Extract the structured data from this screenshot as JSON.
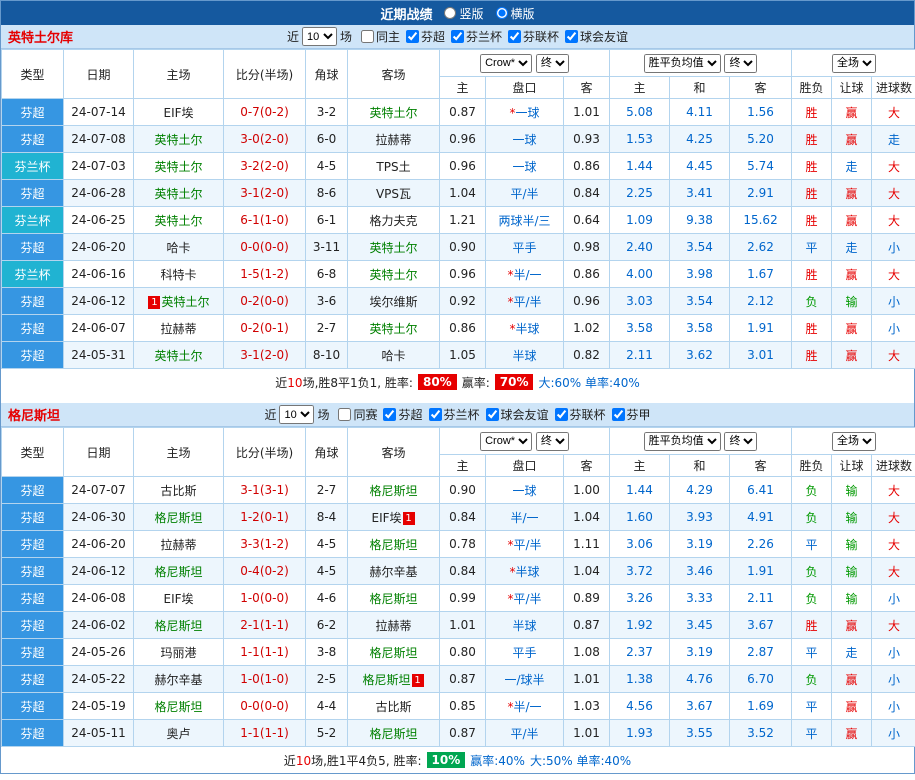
{
  "colors": {
    "topbar_bg": "#15599F",
    "section_head_bg": "#CFE5F8",
    "league_super_bg": "#3696E2",
    "league_cup_bg": "#20B3D2",
    "win_red": "#E60000",
    "lose_green": "#009900",
    "neutral_blue": "#0066CC",
    "team_green": "#008000",
    "score_red": "#D00000",
    "rate_badge_red": "#E60000",
    "rate_badge_green": "#00A651"
  },
  "topbar": {
    "title": "近期战绩",
    "layout_options": [
      {
        "label": "竖版",
        "selected": false
      },
      {
        "label": "横版",
        "selected": true
      }
    ]
  },
  "sections": [
    {
      "team": "英特土尔库",
      "filter": {
        "near": "近",
        "count": "10",
        "games": "场",
        "checkboxes": [
          {
            "label": "同主",
            "checked": false
          },
          {
            "label": "芬超",
            "checked": true
          },
          {
            "label": "芬兰杯",
            "checked": true
          },
          {
            "label": "芬联杯",
            "checked": true
          },
          {
            "label": "球会友谊",
            "checked": true
          }
        ]
      },
      "header": {
        "type": "类型",
        "date": "日期",
        "home": "主场",
        "score": "比分(半场)",
        "corner": "角球",
        "away": "客场",
        "odds_company": "Crow*",
        "odds_time": "终",
        "avg_label": "胜平负均值",
        "avg_time": "终",
        "scope": "全场",
        "sub": [
          "主",
          "盘口",
          "客",
          "主",
          "和",
          "客",
          "胜负",
          "让球",
          "进球数"
        ]
      },
      "rows": [
        {
          "type": "芬超",
          "cup": false,
          "date": "24-07-14",
          "home": "EIF埃",
          "hg": false,
          "hbad": "",
          "score": "0-7(0-2)",
          "corner": "3-2",
          "away": "英特土尔",
          "ag": true,
          "abad": "",
          "o1": "0.87",
          "star": true,
          "hc": "一球",
          "o2": "1.01",
          "a1": "5.08",
          "a2": "4.11",
          "a3": "1.56",
          "r1": "胜",
          "c1": "w",
          "r2": "赢",
          "c2": "w",
          "r3": "大",
          "c3": "w"
        },
        {
          "type": "芬超",
          "cup": false,
          "date": "24-07-08",
          "home": "英特土尔",
          "hg": true,
          "hbad": "",
          "score": "3-0(2-0)",
          "corner": "6-0",
          "away": "拉赫蒂",
          "ag": false,
          "abad": "",
          "o1": "0.96",
          "star": false,
          "hc": "一球",
          "o2": "0.93",
          "a1": "1.53",
          "a2": "4.25",
          "a3": "5.20",
          "r1": "胜",
          "c1": "w",
          "r2": "赢",
          "c2": "w",
          "r3": "走",
          "c3": "d"
        },
        {
          "type": "芬兰杯",
          "cup": true,
          "date": "24-07-03",
          "home": "英特土尔",
          "hg": true,
          "hbad": "",
          "score": "3-2(2-0)",
          "corner": "4-5",
          "away": "TPS土",
          "ag": false,
          "abad": "",
          "o1": "0.96",
          "star": false,
          "hc": "一球",
          "o2": "0.86",
          "a1": "1.44",
          "a2": "4.45",
          "a3": "5.74",
          "r1": "胜",
          "c1": "w",
          "r2": "走",
          "c2": "d",
          "r3": "大",
          "c3": "w"
        },
        {
          "type": "芬超",
          "cup": false,
          "date": "24-06-28",
          "home": "英特土尔",
          "hg": true,
          "hbad": "",
          "score": "3-1(2-0)",
          "corner": "8-6",
          "away": "VPS瓦",
          "ag": false,
          "abad": "",
          "o1": "1.04",
          "star": false,
          "hc": "平/半",
          "o2": "0.84",
          "a1": "2.25",
          "a2": "3.41",
          "a3": "2.91",
          "r1": "胜",
          "c1": "w",
          "r2": "赢",
          "c2": "w",
          "r3": "大",
          "c3": "w"
        },
        {
          "type": "芬兰杯",
          "cup": true,
          "date": "24-06-25",
          "home": "英特土尔",
          "hg": true,
          "hbad": "",
          "score": "6-1(1-0)",
          "corner": "6-1",
          "away": "格力夫克",
          "ag": false,
          "abad": "",
          "o1": "1.21",
          "star": false,
          "hc": "两球半/三",
          "o2": "0.64",
          "a1": "1.09",
          "a2": "9.38",
          "a3": "15.62",
          "r1": "胜",
          "c1": "w",
          "r2": "赢",
          "c2": "w",
          "r3": "大",
          "c3": "w"
        },
        {
          "type": "芬超",
          "cup": false,
          "date": "24-06-20",
          "home": "哈卡",
          "hg": false,
          "hbad": "",
          "score": "0-0(0-0)",
          "corner": "3-11",
          "away": "英特土尔",
          "ag": true,
          "abad": "",
          "o1": "0.90",
          "star": false,
          "hc": "平手",
          "o2": "0.98",
          "a1": "2.40",
          "a2": "3.54",
          "a3": "2.62",
          "r1": "平",
          "c1": "d",
          "r2": "走",
          "c2": "d",
          "r3": "小",
          "c3": "d"
        },
        {
          "type": "芬兰杯",
          "cup": true,
          "date": "24-06-16",
          "home": "科特卡",
          "hg": false,
          "hbad": "",
          "score": "1-5(1-2)",
          "corner": "6-8",
          "away": "英特土尔",
          "ag": true,
          "abad": "",
          "o1": "0.96",
          "star": true,
          "hc": "半/一",
          "o2": "0.86",
          "a1": "4.00",
          "a2": "3.98",
          "a3": "1.67",
          "r1": "胜",
          "c1": "w",
          "r2": "赢",
          "c2": "w",
          "r3": "大",
          "c3": "w"
        },
        {
          "type": "芬超",
          "cup": false,
          "date": "24-06-12",
          "home": "英特土尔",
          "hg": true,
          "hbad": "1",
          "score": "0-2(0-0)",
          "corner": "3-6",
          "away": "埃尔维斯",
          "ag": false,
          "abad": "",
          "o1": "0.92",
          "star": true,
          "hc": "平/半",
          "o2": "0.96",
          "a1": "3.03",
          "a2": "3.54",
          "a3": "2.12",
          "r1": "负",
          "c1": "l",
          "r2": "输",
          "c2": "l",
          "r3": "小",
          "c3": "d"
        },
        {
          "type": "芬超",
          "cup": false,
          "date": "24-06-07",
          "home": "拉赫蒂",
          "hg": false,
          "hbad": "",
          "score": "0-2(0-1)",
          "corner": "2-7",
          "away": "英特土尔",
          "ag": true,
          "abad": "",
          "o1": "0.86",
          "star": true,
          "hc": "半球",
          "o2": "1.02",
          "a1": "3.58",
          "a2": "3.58",
          "a3": "1.91",
          "r1": "胜",
          "c1": "w",
          "r2": "赢",
          "c2": "w",
          "r3": "小",
          "c3": "d"
        },
        {
          "type": "芬超",
          "cup": false,
          "date": "24-05-31",
          "home": "英特土尔",
          "hg": true,
          "hbad": "",
          "score": "3-1(2-0)",
          "corner": "8-10",
          "away": "哈卡",
          "ag": false,
          "abad": "",
          "o1": "1.05",
          "star": false,
          "hc": "半球",
          "o2": "0.82",
          "a1": "2.11",
          "a2": "3.62",
          "a3": "3.01",
          "r1": "胜",
          "c1": "w",
          "r2": "赢",
          "c2": "w",
          "r3": "大",
          "c3": "w"
        }
      ],
      "summary": {
        "prefix": "近",
        "count": "10",
        "record": "场,胜8平1负1, 胜率:",
        "win_rate": "80%",
        "odds_label": "赢率:",
        "odds_rate": "70%",
        "extra": "大:60% 单率:40%"
      }
    },
    {
      "team": "格尼斯坦",
      "filter": {
        "near": "近",
        "count": "10",
        "games": "场",
        "checkboxes": [
          {
            "label": "同赛",
            "checked": false
          },
          {
            "label": "芬超",
            "checked": true
          },
          {
            "label": "芬兰杯",
            "checked": true
          },
          {
            "label": "球会友谊",
            "checked": true
          },
          {
            "label": "芬联杯",
            "checked": true
          },
          {
            "label": "芬甲",
            "checked": true
          }
        ]
      },
      "header": {
        "type": "类型",
        "date": "日期",
        "home": "主场",
        "score": "比分(半场)",
        "corner": "角球",
        "away": "客场",
        "odds_company": "Crow*",
        "odds_time": "终",
        "avg_label": "胜平负均值",
        "avg_time": "终",
        "scope": "全场",
        "sub": [
          "主",
          "盘口",
          "客",
          "主",
          "和",
          "客",
          "胜负",
          "让球",
          "进球数"
        ]
      },
      "rows": [
        {
          "type": "芬超",
          "cup": false,
          "date": "24-07-07",
          "home": "古比斯",
          "hg": false,
          "hbad": "",
          "score": "3-1(3-1)",
          "corner": "2-7",
          "away": "格尼斯坦",
          "ag": true,
          "abad": "",
          "o1": "0.90",
          "star": false,
          "hc": "一球",
          "o2": "1.00",
          "a1": "1.44",
          "a2": "4.29",
          "a3": "6.41",
          "r1": "负",
          "c1": "l",
          "r2": "输",
          "c2": "l",
          "r3": "大",
          "c3": "w"
        },
        {
          "type": "芬超",
          "cup": false,
          "date": "24-06-30",
          "home": "格尼斯坦",
          "hg": true,
          "hbad": "",
          "score": "1-2(0-1)",
          "corner": "8-4",
          "away": "EIF埃",
          "ag": false,
          "abad": "1",
          "o1": "0.84",
          "star": false,
          "hc": "半/一",
          "o2": "1.04",
          "a1": "1.60",
          "a2": "3.93",
          "a3": "4.91",
          "r1": "负",
          "c1": "l",
          "r2": "输",
          "c2": "l",
          "r3": "大",
          "c3": "w"
        },
        {
          "type": "芬超",
          "cup": false,
          "date": "24-06-20",
          "home": "拉赫蒂",
          "hg": false,
          "hbad": "",
          "score": "3-3(1-2)",
          "corner": "4-5",
          "away": "格尼斯坦",
          "ag": true,
          "abad": "",
          "o1": "0.78",
          "star": true,
          "hc": "平/半",
          "o2": "1.11",
          "a1": "3.06",
          "a2": "3.19",
          "a3": "2.26",
          "r1": "平",
          "c1": "d",
          "r2": "输",
          "c2": "l",
          "r3": "大",
          "c3": "w"
        },
        {
          "type": "芬超",
          "cup": false,
          "date": "24-06-12",
          "home": "格尼斯坦",
          "hg": true,
          "hbad": "",
          "score": "0-4(0-2)",
          "corner": "4-5",
          "away": "赫尔辛基",
          "ag": false,
          "abad": "",
          "o1": "0.84",
          "star": true,
          "hc": "半球",
          "o2": "1.04",
          "a1": "3.72",
          "a2": "3.46",
          "a3": "1.91",
          "r1": "负",
          "c1": "l",
          "r2": "输",
          "c2": "l",
          "r3": "大",
          "c3": "w"
        },
        {
          "type": "芬超",
          "cup": false,
          "date": "24-06-08",
          "home": "EIF埃",
          "hg": false,
          "hbad": "",
          "score": "1-0(0-0)",
          "corner": "4-6",
          "away": "格尼斯坦",
          "ag": true,
          "abad": "",
          "o1": "0.99",
          "star": true,
          "hc": "平/半",
          "o2": "0.89",
          "a1": "3.26",
          "a2": "3.33",
          "a3": "2.11",
          "r1": "负",
          "c1": "l",
          "r2": "输",
          "c2": "l",
          "r3": "小",
          "c3": "d"
        },
        {
          "type": "芬超",
          "cup": false,
          "date": "24-06-02",
          "home": "格尼斯坦",
          "hg": true,
          "hbad": "",
          "score": "2-1(1-1)",
          "corner": "6-2",
          "away": "拉赫蒂",
          "ag": false,
          "abad": "",
          "o1": "1.01",
          "star": false,
          "hc": "半球",
          "o2": "0.87",
          "a1": "1.92",
          "a2": "3.45",
          "a3": "3.67",
          "r1": "胜",
          "c1": "w",
          "r2": "赢",
          "c2": "w",
          "r3": "大",
          "c3": "w"
        },
        {
          "type": "芬超",
          "cup": false,
          "date": "24-05-26",
          "home": "玛丽港",
          "hg": false,
          "hbad": "",
          "score": "1-1(1-1)",
          "corner": "3-8",
          "away": "格尼斯坦",
          "ag": true,
          "abad": "",
          "o1": "0.80",
          "star": false,
          "hc": "平手",
          "o2": "1.08",
          "a1": "2.37",
          "a2": "3.19",
          "a3": "2.87",
          "r1": "平",
          "c1": "d",
          "r2": "走",
          "c2": "d",
          "r3": "小",
          "c3": "d"
        },
        {
          "type": "芬超",
          "cup": false,
          "date": "24-05-22",
          "home": "赫尔辛基",
          "hg": false,
          "hbad": "",
          "score": "1-0(1-0)",
          "corner": "2-5",
          "away": "格尼斯坦",
          "ag": true,
          "abad": "1",
          "o1": "0.87",
          "star": false,
          "hc": "一/球半",
          "o2": "1.01",
          "a1": "1.38",
          "a2": "4.76",
          "a3": "6.70",
          "r1": "负",
          "c1": "l",
          "r2": "赢",
          "c2": "w",
          "r3": "小",
          "c3": "d"
        },
        {
          "type": "芬超",
          "cup": false,
          "date": "24-05-19",
          "home": "格尼斯坦",
          "hg": true,
          "hbad": "",
          "score": "0-0(0-0)",
          "corner": "4-4",
          "away": "古比斯",
          "ag": false,
          "abad": "",
          "o1": "0.85",
          "star": true,
          "hc": "半/一",
          "o2": "1.03",
          "a1": "4.56",
          "a2": "3.67",
          "a3": "1.69",
          "r1": "平",
          "c1": "d",
          "r2": "赢",
          "c2": "w",
          "r3": "小",
          "c3": "d"
        },
        {
          "type": "芬超",
          "cup": false,
          "date": "24-05-11",
          "home": "奥卢",
          "hg": false,
          "hbad": "",
          "score": "1-1(1-1)",
          "corner": "5-2",
          "away": "格尼斯坦",
          "ag": true,
          "abad": "",
          "o1": "0.87",
          "star": false,
          "hc": "平/半",
          "o2": "1.01",
          "a1": "1.93",
          "a2": "3.55",
          "a3": "3.52",
          "r1": "平",
          "c1": "d",
          "r2": "赢",
          "c2": "w",
          "r3": "小",
          "c3": "d"
        }
      ],
      "summary": {
        "prefix": "近",
        "count": "10",
        "record": "场,胜1平4负5, 胜率:",
        "win_rate": "10%",
        "odds_label": "赢率:40%",
        "odds_rate": "",
        "extra": "大:50% 单率:40%"
      }
    }
  ]
}
